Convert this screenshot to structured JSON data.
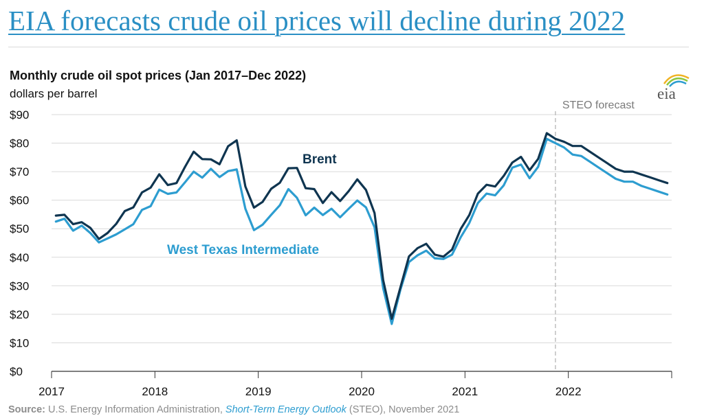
{
  "headline": "EIA forecasts crude oil prices will decline during 2022",
  "logo_text": "eia",
  "colors": {
    "brent": "#0f3550",
    "wti": "#2d9dd0",
    "headline": "#2a8fc4",
    "grid": "#d9d9d9",
    "forecast_line": "#bfbfbf"
  },
  "chart_data": {
    "type": "line",
    "title": "Monthly crude oil spot prices (Jan 2017–Dec 2022)",
    "subtitle": "dollars per barrel",
    "xlabel": "",
    "ylabel": "",
    "ylim": [
      0,
      90
    ],
    "yticks": [
      "$0",
      "$10",
      "$20",
      "$30",
      "$40",
      "$50",
      "$60",
      "$70",
      "$80",
      "$90"
    ],
    "xticks": [
      "2017",
      "2018",
      "2019",
      "2020",
      "2021",
      "2022"
    ],
    "grid": true,
    "x_start": "2017-01",
    "x_end": "2022-12",
    "forecast_label": "STEO forecast",
    "forecast_start": "2021-11",
    "series": [
      {
        "name": "Brent",
        "values": [
          54.6,
          54.9,
          51.6,
          52.3,
          50.3,
          46.4,
          48.5,
          51.7,
          56.2,
          57.5,
          62.7,
          64.4,
          69.1,
          65.3,
          66.0,
          71.7,
          77.0,
          74.4,
          74.3,
          72.6,
          78.9,
          81.0,
          64.8,
          57.4,
          59.4,
          64.0,
          66.1,
          71.2,
          71.3,
          64.2,
          63.9,
          59.0,
          62.8,
          59.7,
          63.2,
          67.3,
          63.6,
          55.5,
          32.0,
          18.4,
          29.4,
          40.3,
          43.2,
          44.7,
          40.9,
          40.2,
          42.7,
          49.9,
          54.8,
          62.3,
          65.4,
          64.8,
          68.5,
          73.2,
          75.2,
          70.5,
          74.5,
          83.5,
          81.5,
          80.5,
          79.0,
          79.0,
          77.0,
          75.0,
          73.0,
          71.0,
          70.0,
          70.0,
          69.0,
          68.0,
          67.0,
          66.0
        ]
      },
      {
        "name": "West Texas Intermediate",
        "values": [
          52.5,
          53.5,
          49.3,
          51.1,
          48.5,
          45.2,
          46.6,
          48.0,
          49.8,
          51.6,
          56.6,
          57.9,
          63.7,
          62.2,
          62.7,
          66.3,
          70.0,
          67.9,
          71.0,
          68.1,
          70.2,
          70.8,
          57.0,
          49.5,
          51.4,
          54.9,
          58.2,
          63.9,
          60.8,
          54.7,
          57.4,
          54.8,
          57.0,
          54.0,
          57.0,
          59.9,
          57.5,
          50.5,
          29.2,
          16.6,
          28.6,
          38.3,
          40.7,
          42.3,
          39.6,
          39.4,
          40.9,
          47.0,
          52.0,
          59.0,
          62.3,
          61.7,
          65.2,
          71.4,
          72.5,
          67.7,
          71.7,
          81.5,
          80.0,
          78.5,
          76.0,
          75.5,
          73.5,
          71.5,
          69.5,
          67.5,
          66.5,
          66.5,
          65.0,
          64.0,
          63.0,
          62.0
        ]
      }
    ],
    "annotations": [
      {
        "text": "Brent",
        "series": 0
      },
      {
        "text": "West Texas Intermediate",
        "series": 1
      }
    ],
    "source": {
      "label": "Source:",
      "text_before": " U.S. Energy Information Administration, ",
      "italic": "Short-Term Energy Outlook",
      "text_after": " (STEO), November 2021"
    }
  }
}
